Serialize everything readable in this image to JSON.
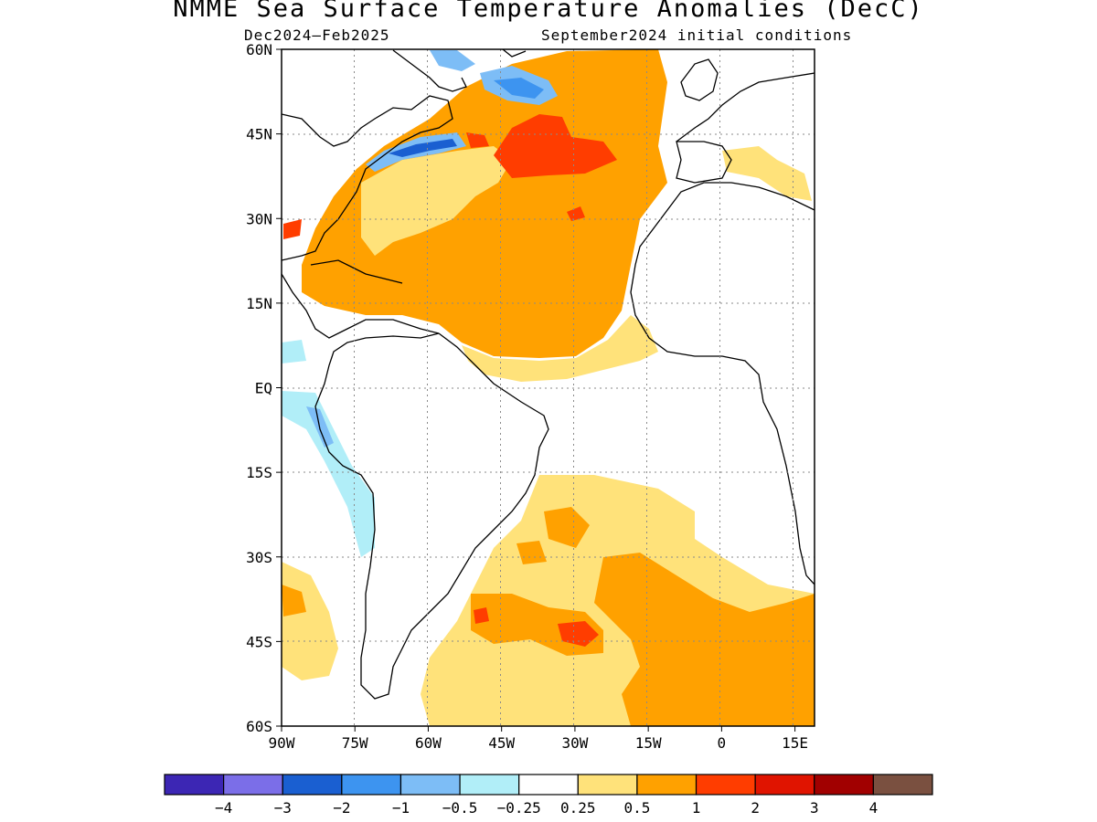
{
  "figure": {
    "title": "NMME Sea Surface Temperature Anomalies (DecC)",
    "period": "Dec2024–Feb2025",
    "initial_conditions": "September2024 initial conditions"
  },
  "map": {
    "region": "Atlantic Ocean",
    "lon_range": [
      -90,
      19
    ],
    "lat_range": [
      -60,
      60
    ],
    "x_ticks": [
      {
        "lon": -90,
        "label": "90W"
      },
      {
        "lon": -75,
        "label": "75W"
      },
      {
        "lon": -60,
        "label": "60W"
      },
      {
        "lon": -45,
        "label": "45W"
      },
      {
        "lon": -30,
        "label": "30W"
      },
      {
        "lon": -15,
        "label": "15W"
      },
      {
        "lon": 0,
        "label": "0"
      },
      {
        "lon": 15,
        "label": "15E"
      }
    ],
    "y_ticks": [
      {
        "lat": 60,
        "label": "60N"
      },
      {
        "lat": 45,
        "label": "45N"
      },
      {
        "lat": 30,
        "label": "30N"
      },
      {
        "lat": 15,
        "label": "15N"
      },
      {
        "lat": 0,
        "label": "EQ"
      },
      {
        "lat": -15,
        "label": "15S"
      },
      {
        "lat": -30,
        "label": "30S"
      },
      {
        "lat": -45,
        "label": "45S"
      },
      {
        "lat": -60,
        "label": "60S"
      }
    ],
    "grid": "dotted"
  },
  "colorbar": {
    "colors": [
      "#3c26b4",
      "#7b6ee8",
      "#1a5fd1",
      "#3d94f0",
      "#7dbdf6",
      "#b1eef8",
      "#ffffff",
      "#ffe27a",
      "#ffa100",
      "#ff3d00",
      "#e01400",
      "#a10000",
      "#7a5040"
    ],
    "labels": [
      "−4",
      "−3",
      "−2",
      "−1",
      "−0.5",
      "−0.25",
      "0.25",
      "0.5",
      "1",
      "2",
      "3",
      "4"
    ]
  }
}
